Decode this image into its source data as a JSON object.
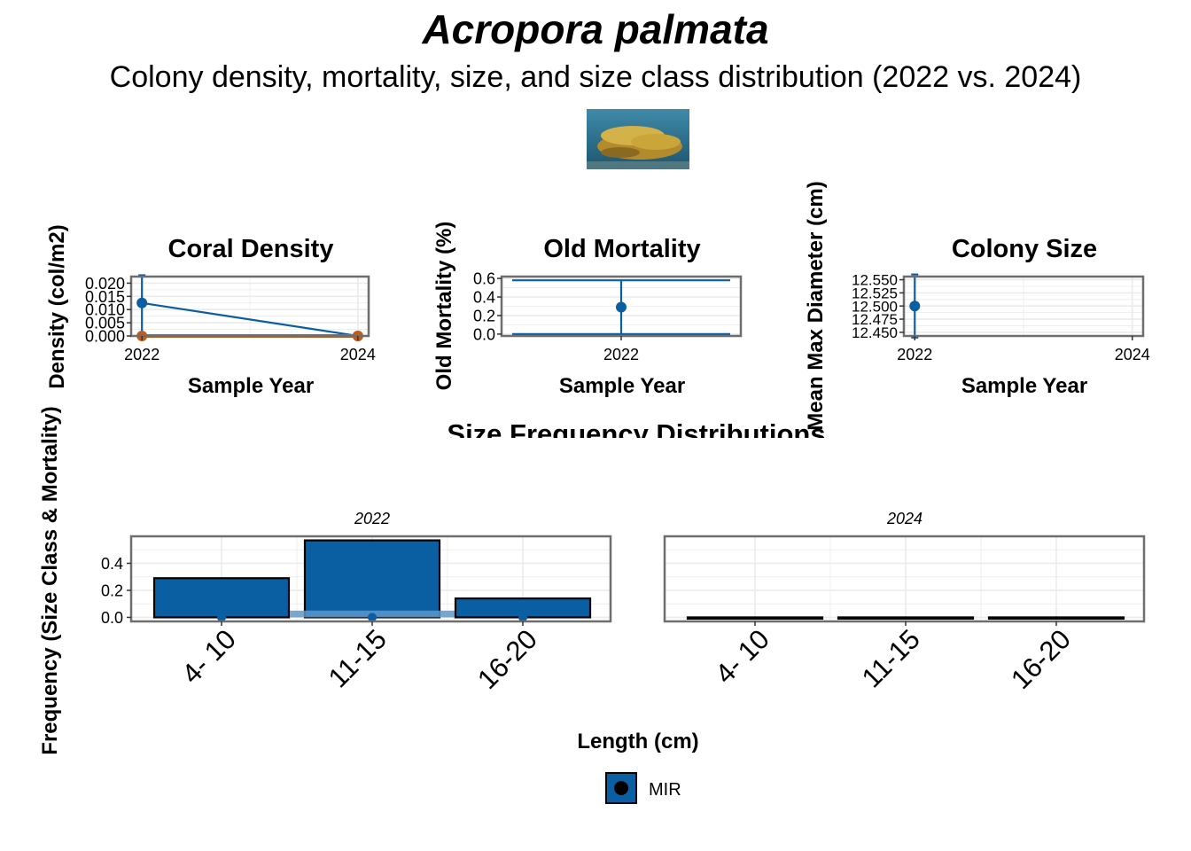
{
  "title": "Acropora palmata",
  "subtitle": "Colony density, mortality, size, and size class distribution (2022 vs. 2024)",
  "photo": {
    "kind": "coral-photo-icon",
    "colors": [
      "#2f6f88",
      "#c9a53a",
      "#8a6a23"
    ]
  },
  "colors": {
    "blue": "#0a5fa3",
    "orange": "#c75a14",
    "grid": "#ebebeb",
    "frame": "#6e6e6e"
  },
  "chart_data": [
    {
      "type": "line",
      "title": "Coral Density",
      "xlabel": "Sample Year",
      "ylabel": "Density (col/m2)",
      "x": [
        2022,
        2024
      ],
      "xticks": [
        "2022",
        "2024"
      ],
      "ylim": [
        0,
        0.0225
      ],
      "yticks": [
        "0.000",
        "0.005",
        "0.010",
        "0.015",
        "0.020"
      ],
      "ytick_values": [
        0,
        0.005,
        0.01,
        0.015,
        0.02
      ],
      "series": [
        {
          "color": "#0a5fa3",
          "values": [
            0.0125,
            0.0
          ],
          "err_low": [
            0,
            0
          ],
          "err_high": [
            0.023,
            0
          ]
        },
        {
          "color": "#c75a14",
          "values": [
            0.0,
            0.0
          ]
        }
      ]
    },
    {
      "type": "line",
      "title": "Old Mortality",
      "xlabel": "Sample Year",
      "ylabel": "Old Mortality (%)",
      "x": [
        2022
      ],
      "xticks": [
        "2022"
      ],
      "ylim": [
        -0.02,
        0.62
      ],
      "yticks": [
        "0.0",
        "0.2",
        "0.4",
        "0.6"
      ],
      "ytick_values": [
        0,
        0.2,
        0.4,
        0.6
      ],
      "series": [
        {
          "color": "#0a5fa3",
          "values": [
            0.29
          ],
          "err_low": [
            0.0
          ],
          "err_high": [
            0.58
          ]
        }
      ]
    },
    {
      "type": "line",
      "title": "Colony Size",
      "xlabel": "Sample Year",
      "ylabel": "Mean Max Diameter (cm)",
      "x": [
        2022,
        2024
      ],
      "xticks": [
        "2022",
        "2024"
      ],
      "ylim": [
        12.443,
        12.556
      ],
      "yticks": [
        "12.450",
        "12.475",
        "12.500",
        "12.525",
        "12.550"
      ],
      "ytick_values": [
        12.45,
        12.475,
        12.5,
        12.525,
        12.55
      ],
      "series": [
        {
          "color": "#0a5fa3",
          "values": [
            12.5,
            null
          ],
          "err_low": [
            12.44
          ],
          "err_high": [
            12.56
          ]
        }
      ]
    },
    {
      "type": "bar",
      "title": "Size Frequency Distributions",
      "xlabel": "Length (cm)",
      "ylabel": "Frequency (Size Class & Mortality)",
      "categories": [
        "4- 10",
        "11-15",
        "16-20"
      ],
      "ylim": [
        -0.03,
        0.6
      ],
      "yticks": [
        "0.0",
        "0.2",
        "0.4"
      ],
      "ytick_values": [
        0,
        0.2,
        0.4
      ],
      "facets": [
        {
          "label": "2022",
          "values": [
            0.29,
            0.57,
            0.14
          ],
          "mortality": [
            0.0,
            0.05,
            0.0
          ]
        },
        {
          "label": "2024",
          "values": [
            0.0,
            0.0,
            0.0
          ],
          "mortality": [
            0.0,
            0.0,
            0.0
          ]
        }
      ],
      "legend": {
        "position": "bottom",
        "entries": [
          {
            "label": "MIR",
            "color": "#0a5fa3"
          }
        ]
      }
    }
  ]
}
